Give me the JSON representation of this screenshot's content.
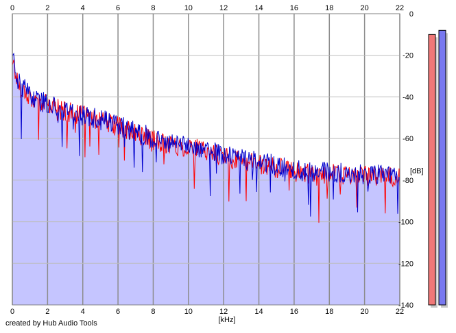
{
  "credit": "created by Hub Audio Tools",
  "chart_data": {
    "type": "area",
    "xlabel": "[kHz]",
    "ylabel": "[dB]",
    "xlim": [
      0,
      22
    ],
    "ylim": [
      -140,
      0
    ],
    "x_ticks": [
      "0",
      "2",
      "4",
      "6",
      "8",
      "10",
      "12",
      "14",
      "16",
      "18",
      "20",
      "22"
    ],
    "y_ticks": [
      "0",
      "-20",
      "-40",
      "-60",
      "-80",
      "-100",
      "-120",
      "-140"
    ],
    "grid": true,
    "fill_color": "#c5c5ff",
    "series": [
      {
        "color": "#ff0000",
        "x": [
          0,
          0.1,
          0.2,
          0.3,
          0.5,
          0.8,
          1,
          1.2,
          1.5,
          2,
          2.5,
          3,
          3.5,
          4,
          4.5,
          5,
          5.5,
          6,
          6.5,
          7,
          7.5,
          8,
          8.5,
          9,
          9.5,
          10,
          10.5,
          11,
          11.5,
          12,
          13,
          14,
          15,
          16,
          17,
          18,
          19,
          20,
          21,
          22
        ],
        "y": [
          -22,
          -25,
          -30,
          -33,
          -36,
          -38,
          -40,
          -41,
          -42,
          -44,
          -45,
          -47,
          -48,
          -49,
          -50,
          -51,
          -53,
          -54,
          -56,
          -58,
          -59,
          -61,
          -62,
          -63,
          -64,
          -64,
          -65,
          -66,
          -67,
          -69,
          -71,
          -72,
          -74,
          -76,
          -77,
          -77,
          -78,
          -78,
          -78,
          -79
        ]
      },
      {
        "color": "#0000cc",
        "x": [
          0,
          0.1,
          0.2,
          0.3,
          0.5,
          0.8,
          1,
          1.2,
          1.5,
          2,
          2.5,
          3,
          3.5,
          4,
          4.5,
          5,
          5.5,
          6,
          6.5,
          7,
          7.5,
          8,
          8.5,
          9,
          9.5,
          10,
          10.5,
          11,
          11.5,
          12,
          13,
          14,
          15,
          16,
          17,
          18,
          19,
          20,
          21,
          22
        ],
        "y": [
          -18,
          -24,
          -29,
          -32,
          -35,
          -37,
          -39,
          -40,
          -42,
          -43,
          -45,
          -46,
          -47,
          -49,
          -50,
          -51,
          -52,
          -54,
          -55,
          -57,
          -58,
          -60,
          -61,
          -62,
          -63,
          -63,
          -64,
          -65,
          -66,
          -68,
          -70,
          -71,
          -73,
          -75,
          -76,
          -76,
          -77,
          -77,
          -77,
          -78
        ]
      }
    ],
    "meters": [
      {
        "color": "#f07878",
        "level_db": -10
      },
      {
        "color": "#7878f0",
        "level_db": -8
      }
    ]
  }
}
